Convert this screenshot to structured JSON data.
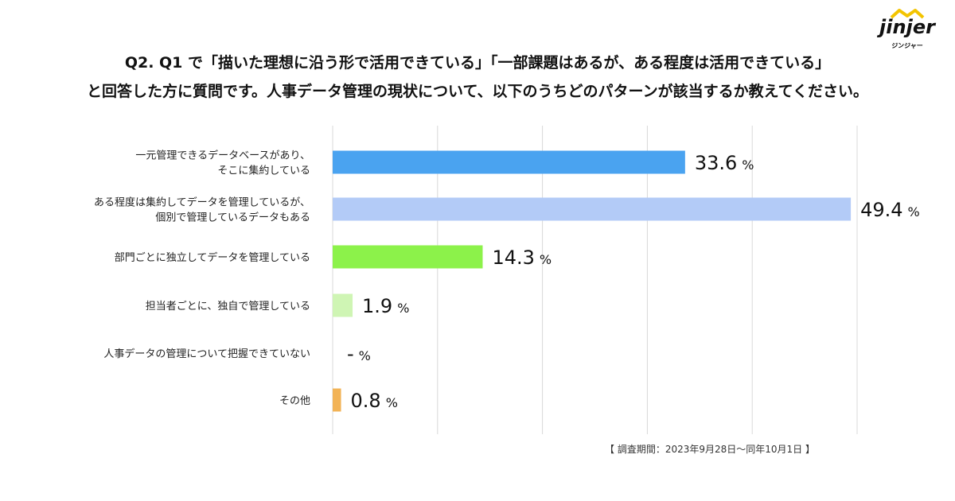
{
  "brand": {
    "logo_text": "jinjer",
    "logo_subtext": "ジンジャー",
    "roof_color": "#f3c400"
  },
  "title_line1": "Q2. Q1 で「描いた理想に沿う形で活用できている」「一部課題はあるが、ある程度は活用できている」",
  "title_line2": "と回答した方に質問です。人事データ管理の現状について、以下のうちどのパターンが該当するか教えてください。",
  "survey_note": "【 調査期間：2023年9月28日～同年10月1日 】",
  "chart_data": {
    "type": "bar",
    "orientation": "horizontal",
    "xlim": [
      0,
      50
    ],
    "grid": true,
    "unit": "%",
    "categories": [
      [
        "一元管理できるデータベースがあり、",
        "そこに集約している"
      ],
      [
        "ある程度は集約してデータを管理しているが、",
        "個別で管理しているデータもある"
      ],
      [
        "部門ごとに独立してデータを管理している"
      ],
      [
        "担当者ごとに、独自で管理している"
      ],
      [
        "人事データの管理について把握できていない"
      ],
      [
        "その他"
      ]
    ],
    "values": [
      33.6,
      49.4,
      14.3,
      1.9,
      null,
      0.8
    ],
    "value_labels": [
      "33.6",
      "49.4",
      "14.3",
      "1.9",
      "-",
      "0.8"
    ],
    "colors": [
      "#4aa3f0",
      "#b3cbf7",
      "#8cf24a",
      "#cff5b4",
      "#cccccc",
      "#f2b356"
    ]
  }
}
